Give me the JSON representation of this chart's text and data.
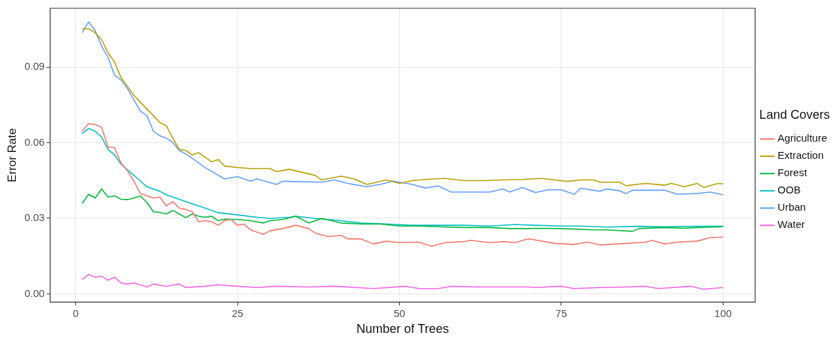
{
  "chart_data": {
    "type": "line",
    "xlabel": "Number of Trees",
    "ylabel": "Error Rate",
    "legend_title": "Land Covers",
    "legend": "right",
    "grid": true,
    "marker": "none",
    "line_style": "solid",
    "xlim": [
      -3.95,
      104.95
    ],
    "xticks": [
      0,
      25,
      50,
      75,
      100
    ],
    "ylim": [
      -0.0033,
      0.1133
    ],
    "yticks": [
      {
        "value": 0,
        "label": "0.00"
      },
      {
        "value": 0.03,
        "label": "0.03"
      },
      {
        "value": 0.06,
        "label": "0.06"
      },
      {
        "value": 0.09,
        "label": "0.09"
      }
    ],
    "series": [
      {
        "name": "Agriculture",
        "color": "#f8766d",
        "x": [
          1,
          2,
          3,
          4,
          5,
          6,
          7,
          8,
          9,
          10,
          11,
          12,
          13,
          14,
          15,
          16,
          17,
          18,
          19,
          20,
          21,
          22,
          23,
          24,
          25,
          26,
          27,
          28,
          29,
          30,
          32,
          34,
          36,
          37,
          39,
          41,
          42,
          44,
          46,
          48,
          50,
          53,
          55,
          57,
          60,
          61,
          64,
          66,
          68,
          69,
          70,
          74,
          77,
          79,
          81,
          85,
          88,
          89,
          91,
          93,
          96,
          98,
          100
        ],
        "values": [
          0.0645,
          0.0675,
          0.0672,
          0.0661,
          0.0582,
          0.058,
          0.0519,
          0.0488,
          0.0447,
          0.0398,
          0.0389,
          0.038,
          0.0384,
          0.0349,
          0.0366,
          0.034,
          0.0335,
          0.0326,
          0.0286,
          0.029,
          0.0286,
          0.0272,
          0.029,
          0.0295,
          0.0272,
          0.0277,
          0.0254,
          0.0245,
          0.0236,
          0.025,
          0.0259,
          0.0272,
          0.0259,
          0.0241,
          0.0227,
          0.0232,
          0.0218,
          0.0218,
          0.0198,
          0.0209,
          0.0203,
          0.0205,
          0.0189,
          0.0203,
          0.0207,
          0.0212,
          0.0203,
          0.0207,
          0.0203,
          0.0212,
          0.0218,
          0.02,
          0.0196,
          0.0205,
          0.0194,
          0.02,
          0.0205,
          0.0212,
          0.0198,
          0.0205,
          0.0209,
          0.0223,
          0.0225
        ]
      },
      {
        "name": "Extraction",
        "color": "#b79f00",
        "x": [
          1,
          2,
          3,
          4,
          5,
          6,
          7,
          8,
          9,
          10,
          11,
          12,
          13,
          14,
          15,
          16,
          17,
          18,
          19,
          20,
          21,
          22,
          23,
          25,
          27,
          30,
          31,
          33,
          37,
          38,
          41,
          43,
          45,
          48,
          50,
          52,
          54,
          57,
          60,
          63,
          66,
          69,
          72,
          74,
          76,
          78,
          80,
          81,
          84,
          85,
          88,
          91,
          92,
          94,
          96,
          97,
          99,
          100
        ],
        "values": [
          0.105,
          0.1052,
          0.1036,
          0.1009,
          0.0956,
          0.092,
          0.0858,
          0.0823,
          0.0787,
          0.076,
          0.0734,
          0.0707,
          0.068,
          0.0667,
          0.0618,
          0.0573,
          0.0569,
          0.0551,
          0.056,
          0.0542,
          0.0524,
          0.0533,
          0.0507,
          0.0501,
          0.0497,
          0.0497,
          0.0485,
          0.0494,
          0.047,
          0.0452,
          0.0467,
          0.0456,
          0.0434,
          0.0452,
          0.0438,
          0.0449,
          0.0454,
          0.0458,
          0.0449,
          0.0449,
          0.0452,
          0.0454,
          0.0458,
          0.0452,
          0.0446,
          0.0452,
          0.0452,
          0.0443,
          0.0443,
          0.0429,
          0.0438,
          0.0431,
          0.0438,
          0.0425,
          0.0438,
          0.0422,
          0.0437,
          0.0437
        ]
      },
      {
        "name": "Forest",
        "color": "#00ba38",
        "x": [
          1,
          2,
          3,
          4,
          5,
          6,
          7,
          8,
          9,
          10,
          11,
          12,
          13,
          14,
          15,
          16,
          17,
          18,
          19,
          20,
          21,
          22,
          23,
          25,
          27,
          29,
          30,
          32,
          34,
          36,
          38,
          41,
          44,
          47,
          50,
          53,
          56,
          60,
          64,
          67,
          70,
          71,
          75,
          80,
          82,
          86,
          87,
          91,
          94,
          96,
          100
        ],
        "values": [
          0.0358,
          0.0395,
          0.038,
          0.0416,
          0.0384,
          0.0389,
          0.0375,
          0.0374,
          0.038,
          0.0389,
          0.0362,
          0.0326,
          0.0323,
          0.0317,
          0.0331,
          0.0317,
          0.0302,
          0.0317,
          0.0308,
          0.0304,
          0.0308,
          0.029,
          0.0296,
          0.0295,
          0.029,
          0.0281,
          0.029,
          0.0295,
          0.0308,
          0.0281,
          0.0299,
          0.0281,
          0.0277,
          0.0277,
          0.0269,
          0.0269,
          0.0266,
          0.0263,
          0.0263,
          0.0259,
          0.0259,
          0.026,
          0.0259,
          0.0254,
          0.0254,
          0.0248,
          0.0259,
          0.0263,
          0.026,
          0.0263,
          0.0266
        ]
      },
      {
        "name": "OOB",
        "color": "#00bfc4",
        "x": [
          1,
          2,
          3,
          4,
          5,
          6,
          7,
          8,
          9,
          10,
          11,
          12,
          13,
          14,
          15,
          16,
          18,
          20,
          22,
          25,
          28,
          30,
          33,
          34,
          37,
          40,
          44,
          48,
          52,
          56,
          60,
          64,
          68,
          71,
          75,
          78,
          82,
          87,
          91,
          96,
          100
        ],
        "values": [
          0.0636,
          0.0656,
          0.0645,
          0.0623,
          0.0573,
          0.0551,
          0.0515,
          0.0492,
          0.047,
          0.0447,
          0.0425,
          0.0416,
          0.0407,
          0.0393,
          0.0384,
          0.0375,
          0.0357,
          0.034,
          0.0322,
          0.0313,
          0.0304,
          0.0299,
          0.0304,
          0.0308,
          0.0299,
          0.0293,
          0.0281,
          0.0277,
          0.0272,
          0.0272,
          0.0272,
          0.0269,
          0.0275,
          0.0272,
          0.0269,
          0.0269,
          0.0265,
          0.0268,
          0.0266,
          0.0268,
          0.0268
        ]
      },
      {
        "name": "Urban",
        "color": "#619cff",
        "x": [
          1,
          2,
          3,
          4,
          5,
          6,
          7,
          8,
          9,
          10,
          11,
          12,
          13,
          14,
          15,
          16,
          17,
          18,
          20,
          23,
          25,
          27,
          28,
          31,
          32,
          33,
          38,
          40,
          42,
          45,
          47,
          49,
          52,
          54,
          56,
          58,
          61,
          64,
          66,
          67,
          69,
          71,
          73,
          75,
          77,
          78,
          81,
          82,
          84,
          85,
          86,
          91,
          93,
          96,
          98,
          100
        ],
        "values": [
          0.1036,
          0.1079,
          0.1045,
          0.0983,
          0.0938,
          0.0867,
          0.0849,
          0.0814,
          0.0769,
          0.0725,
          0.0707,
          0.0645,
          0.0627,
          0.0618,
          0.06,
          0.0569,
          0.0555,
          0.0538,
          0.0501,
          0.0456,
          0.0465,
          0.0447,
          0.0456,
          0.0434,
          0.0447,
          0.0446,
          0.0443,
          0.0452,
          0.0438,
          0.0425,
          0.0434,
          0.0447,
          0.0434,
          0.042,
          0.0428,
          0.0404,
          0.0404,
          0.0404,
          0.0416,
          0.0404,
          0.0422,
          0.0402,
          0.0413,
          0.0413,
          0.0395,
          0.0419,
          0.0407,
          0.0416,
          0.0409,
          0.0398,
          0.0411,
          0.0411,
          0.0395,
          0.0398,
          0.0404,
          0.0393
        ]
      },
      {
        "name": "Water",
        "color": "#f564e3",
        "x": [
          1,
          2,
          3,
          4,
          5,
          6,
          7,
          8,
          9,
          10,
          11,
          12,
          14,
          16,
          17,
          20,
          22,
          25,
          28,
          31,
          36,
          40,
          46,
          51,
          53,
          56,
          58,
          62,
          66,
          70,
          71,
          75,
          77,
          81,
          85,
          88,
          90,
          95,
          97,
          100
        ],
        "values": [
          0.0057,
          0.0077,
          0.0066,
          0.007,
          0.0054,
          0.0066,
          0.0043,
          0.0039,
          0.0043,
          0.0036,
          0.0027,
          0.0039,
          0.003,
          0.0039,
          0.0025,
          0.003,
          0.0036,
          0.003,
          0.0025,
          0.003,
          0.0027,
          0.003,
          0.0021,
          0.003,
          0.0021,
          0.0021,
          0.003,
          0.0027,
          0.0027,
          0.0027,
          0.0025,
          0.003,
          0.0021,
          0.0025,
          0.0027,
          0.003,
          0.0021,
          0.003,
          0.0018,
          0.0025
        ]
      }
    ]
  }
}
